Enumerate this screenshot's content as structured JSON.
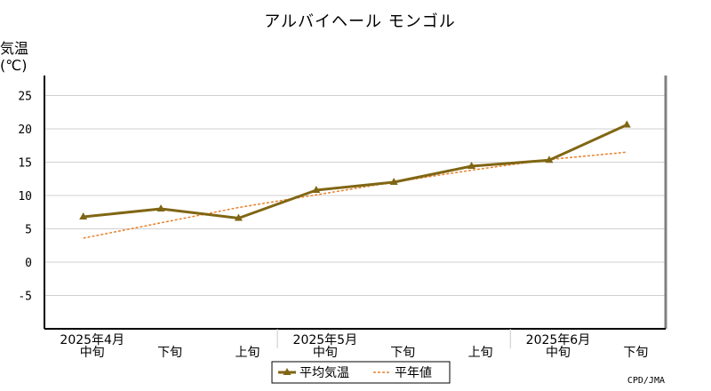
{
  "chart_data": {
    "type": "line",
    "title": "アルバイヘール モンゴル",
    "ylabel": "気温",
    "yunit": "(℃)",
    "ylim": [
      -10,
      28
    ],
    "yticks": [
      25,
      20,
      15,
      10,
      5,
      0,
      -5
    ],
    "categories": [
      "中旬",
      "下旬",
      "上旬",
      "中旬",
      "下旬",
      "上旬",
      "中旬",
      "下旬"
    ],
    "month_labels": [
      {
        "label": "2025年4月",
        "category_index": 0
      },
      {
        "label": "2025年5月",
        "category_index": 3
      },
      {
        "label": "2025年6月",
        "category_index": 6
      }
    ],
    "series": [
      {
        "name": "平均気温",
        "values": [
          6.8,
          8.0,
          6.6,
          10.8,
          12.0,
          14.4,
          15.3,
          20.6
        ],
        "color": "#806614",
        "style": "solid-triangle-markers"
      },
      {
        "name": "平年値",
        "values": [
          3.6,
          5.9,
          8.2,
          10.1,
          12.0,
          13.8,
          15.4,
          16.5
        ],
        "color": "#e8822a",
        "style": "dotted"
      }
    ],
    "grid": true,
    "legend": "bottom-center"
  },
  "credit": "CPD/JMA"
}
